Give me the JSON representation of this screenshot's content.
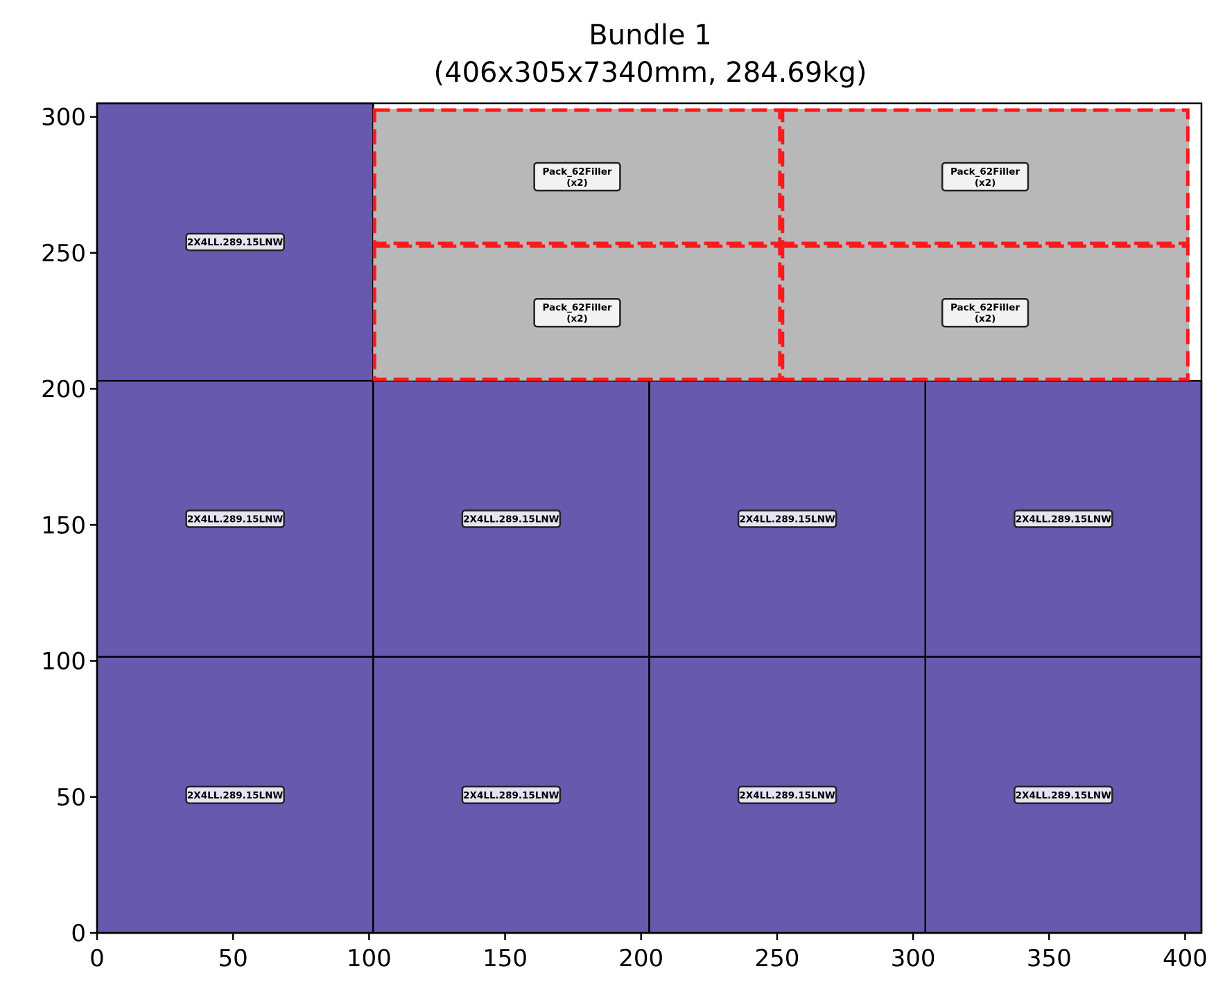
{
  "chart_data": {
    "type": "layout",
    "title_line1": "Bundle 1",
    "title_line2": "(406x305x7340mm, 284.69kg)",
    "xlim": [
      0,
      406
    ],
    "ylim": [
      0,
      305
    ],
    "x_ticks": [
      0,
      50,
      100,
      150,
      200,
      250,
      300,
      350,
      400
    ],
    "y_ticks": [
      0,
      50,
      100,
      150,
      200,
      250,
      300
    ],
    "colors": {
      "board_fill": "#6759ad",
      "filler_fill": "#b8b8b8",
      "filler_outline": "#ff1a1a",
      "label_bg_board": "#e6e4f2",
      "label_bg_filler": "#f2f2f2"
    },
    "boards": [
      {
        "label": "2X4LL.289.15LNW",
        "x": 0,
        "y": 203,
        "w": 101.5,
        "h": 102
      },
      {
        "label": "2X4LL.289.15LNW",
        "x": 0,
        "y": 101.5,
        "w": 101.5,
        "h": 101.5
      },
      {
        "label": "2X4LL.289.15LNW",
        "x": 101.5,
        "y": 101.5,
        "w": 101.5,
        "h": 101.5
      },
      {
        "label": "2X4LL.289.15LNW",
        "x": 203,
        "y": 101.5,
        "w": 101.5,
        "h": 101.5
      },
      {
        "label": "2X4LL.289.15LNW",
        "x": 304.5,
        "y": 101.5,
        "w": 101.5,
        "h": 101.5
      },
      {
        "label": "2X4LL.289.15LNW",
        "x": 0,
        "y": 0,
        "w": 101.5,
        "h": 101.5
      },
      {
        "label": "2X4LL.289.15LNW",
        "x": 101.5,
        "y": 0,
        "w": 101.5,
        "h": 101.5
      },
      {
        "label": "2X4LL.289.15LNW",
        "x": 203,
        "y": 0,
        "w": 101.5,
        "h": 101.5
      },
      {
        "label": "2X4LL.289.15LNW",
        "x": 304.5,
        "y": 0,
        "w": 101.5,
        "h": 101.5
      }
    ],
    "fillers": [
      {
        "label": "Pack_62Filler",
        "count": "(x2)",
        "x": 101.5,
        "y": 253,
        "w": 150,
        "h": 50
      },
      {
        "label": "Pack_62Filler",
        "count": "(x2)",
        "x": 251.5,
        "y": 253,
        "w": 150,
        "h": 50
      },
      {
        "label": "Pack_62Filler",
        "count": "(x2)",
        "x": 101.5,
        "y": 203,
        "w": 150,
        "h": 50
      },
      {
        "label": "Pack_62Filler",
        "count": "(x2)",
        "x": 251.5,
        "y": 203,
        "w": 150,
        "h": 50
      }
    ]
  }
}
